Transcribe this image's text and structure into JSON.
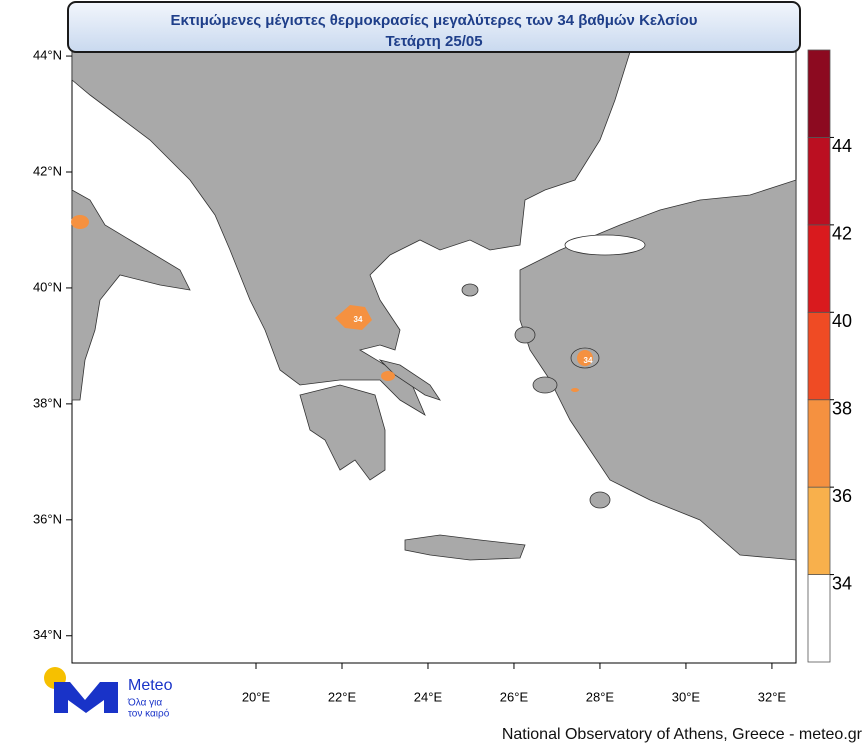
{
  "header": {
    "title": "Εκτιμώμενες μέγιστες θερμοκρασίες μεγαλύτερες των 34 βαθμών Κελσίου",
    "subtitle": "Τετάρτη 25/05"
  },
  "map": {
    "xlim": [
      15.72,
      32.56
    ],
    "ylim": [
      33.53,
      44.07
    ],
    "yticks": [
      {
        "value": 44,
        "label": "44°N"
      },
      {
        "value": 42,
        "label": "42°N"
      },
      {
        "value": 40,
        "label": "40°N"
      },
      {
        "value": 38,
        "label": "38°N"
      },
      {
        "value": 36,
        "label": "36°N"
      },
      {
        "value": 34,
        "label": "34°N"
      }
    ],
    "xticks": [
      {
        "value": 20,
        "label": "20°E"
      },
      {
        "value": 22,
        "label": "22°E"
      },
      {
        "value": 24,
        "label": "24°E"
      },
      {
        "value": 26,
        "label": "26°E"
      },
      {
        "value": 28,
        "label": "28°E"
      },
      {
        "value": 30,
        "label": "30°E"
      },
      {
        "value": 32,
        "label": "32°E"
      }
    ],
    "labels": [
      "34",
      "34"
    ]
  },
  "colorbar": {
    "ticks": [
      34,
      36,
      38,
      40,
      42,
      44
    ],
    "colors": [
      "#ffffff",
      "#f8b04c",
      "#f59140",
      "#ef4b24",
      "#d91a1e",
      "#bb0f21",
      "#8c0a20"
    ]
  },
  "logo": {
    "name": "Meteo",
    "slogan_1": "Όλα για",
    "slogan_2": "τον καιρό"
  },
  "footer": "National Observatory of Athens, Greece - meteo.gr"
}
